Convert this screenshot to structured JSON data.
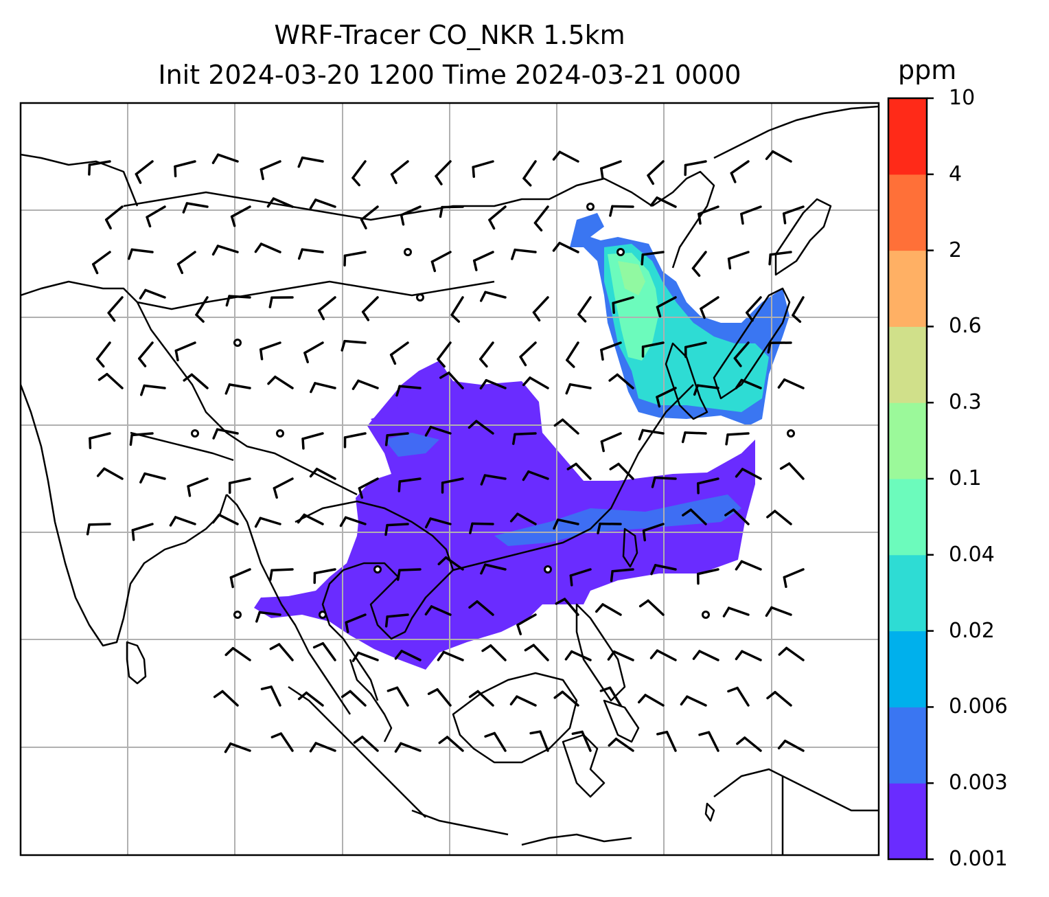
{
  "title": {
    "line1": "WRF-Tracer CO_NKR 1.5km",
    "line2": "Init 2024-03-20 1200 Time 2024-03-21 0000"
  },
  "colorbar": {
    "unit": "ppm",
    "levels": [
      "0.001",
      "0.003",
      "0.006",
      "0.02",
      "0.04",
      "0.1",
      "0.3",
      "0.6",
      "2",
      "4",
      "10"
    ],
    "colors": [
      "#6a2cff",
      "#3a76f2",
      "#00b0ec",
      "#2edcd4",
      "#6cfbbc",
      "#9bf99a",
      "#d0e08a",
      "#ffb064",
      "#ff7038",
      "#ff2a18"
    ]
  },
  "map": {
    "field": "CO tracer concentration",
    "overlays": [
      "coastlines",
      "country-borders",
      "lat-lon-gridlines",
      "wind-barbs"
    ],
    "colors": {
      "coastline": "#000000",
      "gridline": "#b0b0b0",
      "barb": "#000000"
    }
  }
}
